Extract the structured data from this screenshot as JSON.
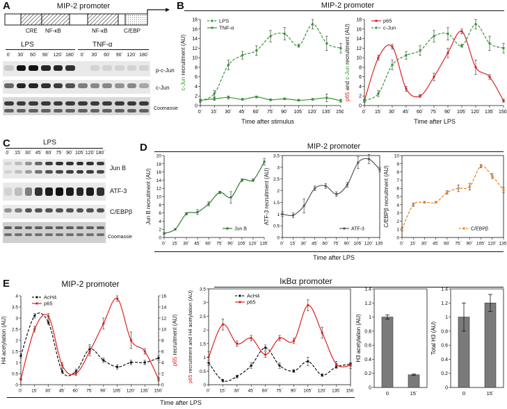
{
  "figure": {
    "panels": {
      "A": {
        "letter": "A",
        "promoter_title": "MIP-2 promoter",
        "elements": [
          "CRE",
          "NF-κB",
          "NF-κB",
          "C/EBP"
        ],
        "treatments": [
          "LPS",
          "TNF-α"
        ],
        "time_labels": [
          "0´",
          "30´",
          "60´",
          "90´",
          "120´",
          "180´",
          "0´",
          "30´",
          "60´",
          "90´",
          "120´",
          "180´"
        ],
        "blot_labels": [
          "p-c-Jun",
          "c-Jun",
          "Coomassie"
        ]
      },
      "B": {
        "letter": "B",
        "title": "MIP-2 promoter",
        "left_xlabel": "Time after stimulus",
        "right_xlabel": "Time after LPS"
      },
      "C": {
        "letter": "C",
        "treatment": "LPS",
        "time_labels": [
          "0´",
          "15´",
          "30´",
          "45´",
          "60´",
          "75´",
          "90´",
          "105´",
          "120´",
          "180´"
        ],
        "blot_labels": [
          "Jun B",
          "ATF-3",
          "C/EBPβ",
          "Coomassie"
        ]
      },
      "D": {
        "letter": "D",
        "title": "MIP-2 promoter",
        "xlabel": "Time after LPS"
      },
      "E": {
        "letter": "E",
        "left_title": "MIP-2 promoter",
        "right_title": "IκBα promoter",
        "xlabel": "Time after LPS"
      }
    }
  },
  "chart_data": [
    {
      "id": "B-left",
      "type": "line",
      "x": [
        "0´",
        "15´",
        "30´",
        "45´",
        "60´",
        "75´",
        "90´",
        "105´",
        "120´",
        "135´",
        "150´"
      ],
      "ylabel": "c-Jun recruitment (AU)",
      "xlabel": "Time after stimulus",
      "ylim": [
        0,
        18
      ],
      "yticks": [
        0,
        2,
        4,
        6,
        8,
        10,
        12,
        14,
        16,
        18
      ],
      "series": [
        {
          "name": "LPS",
          "color": "#2e9a2e",
          "dash": true,
          "values": [
            1,
            2.5,
            8.5,
            10.5,
            11.5,
            14.5,
            15,
            12.5,
            17,
            13,
            12
          ],
          "err": [
            0.3,
            0.6,
            1,
            0.8,
            1,
            1.2,
            1.3,
            0.3,
            1,
            1.5,
            1
          ]
        },
        {
          "name": "TNF-α",
          "color": "#2e9a2e",
          "dash": false,
          "values": [
            1.1,
            1.4,
            1.7,
            1.3,
            1.8,
            1.2,
            1.4,
            1.1,
            1.3,
            1.6,
            1
          ],
          "err": [
            0.2,
            0.3,
            0.3,
            0.2,
            0.2,
            0.2,
            0.2,
            0.2,
            0.2,
            0.8,
            0.3
          ]
        }
      ]
    },
    {
      "id": "B-right",
      "type": "line",
      "x": [
        "0´",
        "15´",
        "30´",
        "45´",
        "60´",
        "75´",
        "90´",
        "105´",
        "120´",
        "135´",
        "150´"
      ],
      "ylabel": "p65 and c-Jun recruitment (AU)",
      "xlabel": "Time after LPS",
      "ylim": [
        0,
        18
      ],
      "yticks": [
        0,
        2,
        4,
        6,
        8,
        10,
        12,
        14,
        16,
        18
      ],
      "series": [
        {
          "name": "p65",
          "color": "#e02020",
          "dash": false,
          "values": [
            1,
            10,
            12.3,
            3.5,
            2,
            6,
            11,
            15.5,
            8,
            6,
            1
          ],
          "err": [
            0.2,
            0.5,
            0.5,
            0.5,
            0.3,
            0.8,
            1,
            0.5,
            1.5,
            0.5,
            0.3
          ]
        },
        {
          "name": "c-Jun",
          "color": "#2e9a2e",
          "dash": true,
          "values": [
            1,
            2.5,
            8.5,
            10.5,
            11.5,
            14.5,
            15,
            12.5,
            17,
            13,
            12
          ],
          "err": [
            0.3,
            0.6,
            1,
            0.8,
            1,
            1.2,
            1.3,
            0.3,
            1,
            1.5,
            1
          ]
        }
      ]
    },
    {
      "id": "D-1",
      "type": "line",
      "x": [
        "0´",
        "15´",
        "30´",
        "45´",
        "60´",
        "75´",
        "90´",
        "105´",
        "120´",
        "135´"
      ],
      "ylabel": "Jun B recruitment (AU)",
      "ylim": [
        0,
        20
      ],
      "yticks": [
        0,
        2,
        4,
        6,
        8,
        10,
        12,
        14,
        16,
        18,
        20
      ],
      "series": [
        {
          "name": "Jun B",
          "color": "#2e7a2e",
          "dash": false,
          "values": [
            1,
            2,
            5.8,
            6.2,
            8.2,
            11,
            9.8,
            14,
            14,
            18.5
          ],
          "err": [
            0.2,
            0.2,
            0.3,
            0.6,
            0.5,
            0.3,
            1.4,
            0.3,
            0.3,
            0.8
          ]
        }
      ]
    },
    {
      "id": "D-2",
      "type": "line",
      "x": [
        "0´",
        "15´",
        "30´",
        "45´",
        "60´",
        "75´",
        "90´",
        "105´",
        "120´",
        "135´"
      ],
      "ylabel": "ATF-3 recruitment (AU)",
      "ylim": [
        0,
        3.5
      ],
      "yticks": [
        0,
        0.5,
        1,
        1.5,
        2,
        2.5,
        3,
        3.5
      ],
      "series": [
        {
          "name": "ATF-3",
          "color": "#555555",
          "dash": false,
          "values": [
            1,
            0.95,
            1.35,
            2.1,
            2.2,
            1.85,
            2.25,
            3.2,
            3.35,
            2.9
          ],
          "err": [
            0.1,
            0.1,
            0.3,
            0.1,
            0.1,
            0.1,
            0.1,
            0.25,
            0.2,
            0.1
          ]
        }
      ]
    },
    {
      "id": "D-3",
      "type": "line",
      "x": [
        "0´",
        "15´",
        "30´",
        "45´",
        "60´",
        "75´",
        "90´",
        "105´",
        "120´",
        "135´"
      ],
      "ylabel": "C/EBPβ recruitment (AU)",
      "ylim": [
        0,
        10
      ],
      "yticks": [
        0,
        1,
        2,
        3,
        4,
        5,
        6,
        7,
        8,
        9,
        10
      ],
      "series": [
        {
          "name": "C/EBPβ",
          "color": "#e8801e",
          "dash": true,
          "values": [
            1,
            4,
            4.3,
            4.3,
            5.5,
            6,
            6.2,
            8.7,
            7.5,
            5.8
          ],
          "err": [
            0.2,
            0.2,
            0.1,
            0.1,
            0.2,
            0.4,
            0.4,
            0.2,
            0.3,
            0.3
          ]
        }
      ]
    },
    {
      "id": "E-1",
      "type": "line",
      "x": [
        "0´",
        "15´",
        "30´",
        "45´",
        "60´",
        "75´",
        "90´",
        "105´",
        "120´",
        "135´",
        "150´"
      ],
      "ylabel": "H4 acetylation (AU)",
      "y2label": "p65 recruitment (AU)",
      "ylim": [
        0,
        4
      ],
      "yticks": [
        0,
        0.5,
        1,
        1.5,
        2,
        2.5,
        3,
        3.5,
        4
      ],
      "y2lim": [
        0,
        16
      ],
      "y2ticks": [
        0,
        2,
        4,
        6,
        8,
        10,
        12,
        14,
        16
      ],
      "series": [
        {
          "name": "AcH4",
          "axis": "left",
          "color": "#111111",
          "dash": true,
          "values": [
            1.3,
            3.1,
            2.8,
            0.6,
            0.6,
            1.6,
            1.1,
            0.8,
            1,
            1,
            1.2
          ],
          "err": [
            0.1,
            0.1,
            0.1,
            0.1,
            0.1,
            0.2,
            0.1,
            0.1,
            0.1,
            0.1,
            0.1
          ]
        },
        {
          "name": "p65",
          "axis": "right",
          "color": "#e02020",
          "dash": false,
          "values": [
            1,
            10,
            12.3,
            3.5,
            2,
            6,
            11,
            15.5,
            8,
            6,
            1
          ],
          "err": [
            0.2,
            0.5,
            0.5,
            0.5,
            0.3,
            0.8,
            1,
            0.5,
            1.5,
            0.5,
            0.3
          ]
        }
      ]
    },
    {
      "id": "E-2",
      "type": "line",
      "x": [
        "0´",
        "15´",
        "30´",
        "45´",
        "60´",
        "75´",
        "90´",
        "105´",
        "120´",
        "135´",
        "150´"
      ],
      "ylabel": "p65 recruitment and H4 acetylation (AU)",
      "ylim": [
        0,
        3.5
      ],
      "yticks": [
        0,
        0.5,
        1,
        1.5,
        2,
        2.5,
        3,
        3.5
      ],
      "series": [
        {
          "name": "AcH4",
          "color": "#111111",
          "dash": true,
          "values": [
            0.8,
            0.15,
            0.3,
            0.7,
            1.35,
            0.7,
            0.5,
            0.85,
            0.35,
            0.65,
            0.75
          ],
          "err": [
            0.1,
            0.05,
            0.05,
            0.1,
            0.1,
            0.1,
            0.05,
            0.15,
            0.05,
            0.05,
            0.05
          ]
        },
        {
          "name": "p65",
          "color": "#e02020",
          "dash": false,
          "values": [
            1,
            2.2,
            1.5,
            1.7,
            1.1,
            1.7,
            1.6,
            2.9,
            1.9,
            0.75,
            0.7
          ],
          "err": [
            0.2,
            0.2,
            0.1,
            0.1,
            0.1,
            0.1,
            0.1,
            0.2,
            0.2,
            0.1,
            0.1
          ]
        }
      ]
    },
    {
      "id": "E-3",
      "type": "bar",
      "categories": [
        "0",
        "15´"
      ],
      "values": [
        1,
        0.18
      ],
      "err": [
        0.03,
        0.01
      ],
      "ylabel": "H3 acetylation (AU)",
      "ylim": [
        0,
        1.4
      ],
      "yticks": [
        0,
        0.2,
        0.4,
        0.6,
        0.8,
        1,
        1.2,
        1.4
      ]
    },
    {
      "id": "E-4",
      "type": "bar",
      "categories": [
        "0",
        "15´"
      ],
      "values": [
        1,
        1.2
      ],
      "err": [
        0.2,
        0.12
      ],
      "ylabel": "Total H3 (AU)",
      "ylim": [
        0,
        1.4
      ],
      "yticks": [
        0,
        0.2,
        0.4,
        0.6,
        0.8,
        1,
        1.2,
        1.4
      ]
    }
  ]
}
